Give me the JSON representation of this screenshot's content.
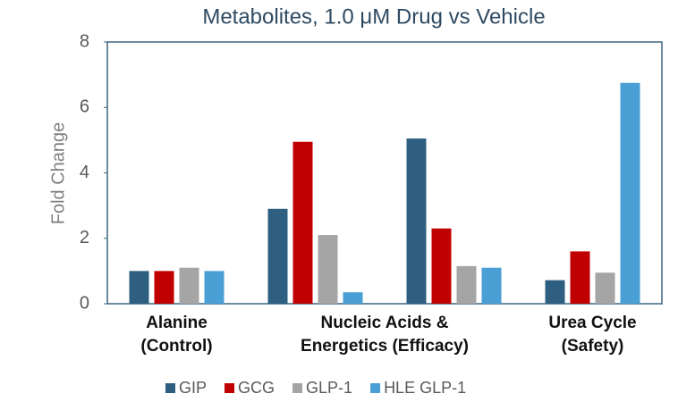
{
  "chart_data": {
    "type": "bar",
    "title": "Metabolites, 1.0 μM Drug vs Vehicle",
    "y_label": "Fold Change",
    "categories": [
      [
        "Alanine",
        "(Control)"
      ],
      [
        "Nucleic Acids &",
        "Energetics (Efficacy)"
      ],
      null,
      [
        "Urea Cycle",
        "(Safety)"
      ]
    ],
    "series": [
      {
        "name": "GIP",
        "color": "#2e5f80",
        "values": [
          1.0,
          2.9,
          5.05,
          0.72
        ]
      },
      {
        "name": "GCG",
        "color": "#c00000",
        "values": [
          1.0,
          4.95,
          2.3,
          1.6
        ]
      },
      {
        "name": "GLP-1",
        "color": "#a5a5a5",
        "values": [
          1.1,
          2.1,
          1.15,
          0.95
        ]
      },
      {
        "name": "HLE GLP-1",
        "color": "#4a9fd4",
        "values": [
          1.0,
          0.35,
          1.1,
          6.75
        ]
      }
    ],
    "ylim": [
      0,
      8
    ],
    "yticks": [
      0,
      2,
      4,
      6,
      8
    ],
    "legend": "bottom"
  }
}
